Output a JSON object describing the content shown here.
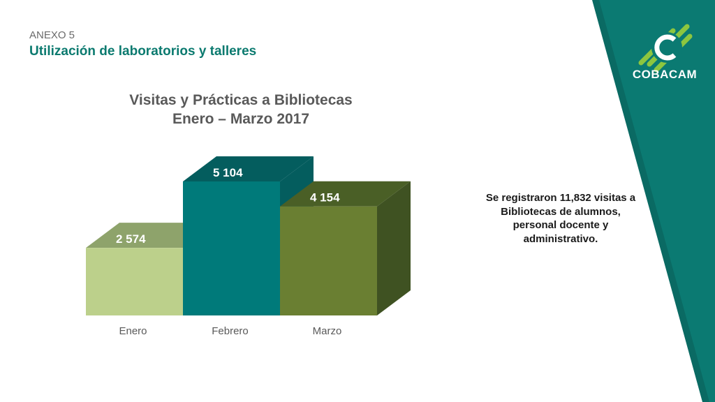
{
  "header": {
    "annex": "ANEXO 5",
    "subtitle": "Utilización de laboratorios y talleres"
  },
  "brand": {
    "name": "COBACAM",
    "color": "#0b7a72",
    "accent": "#8dc63f"
  },
  "note": "Se registraron 11,832 visitas a Bibliotecas de alumnos, personal docente y administrativo.",
  "chart_data": {
    "type": "bar",
    "style": "3d",
    "title_line1": "Visitas y Prácticas a Bibliotecas",
    "title_line2": "Enero – Marzo 2017",
    "categories": [
      "Enero",
      "Febrero",
      "Marzo"
    ],
    "values": [
      2574,
      5104,
      4154
    ],
    "value_labels": [
      "2 574",
      "5 104",
      "4 154"
    ],
    "colors": [
      {
        "front": "#bcd08b",
        "top": "#8ea36b",
        "side": "#8ea36b"
      },
      {
        "front": "#007a7a",
        "top": "#045d5e",
        "side": "#045d5e"
      },
      {
        "front": "#6a7f32",
        "top": "#4a5f26",
        "side": "#3f5222"
      }
    ],
    "xlabel": "",
    "ylabel": "",
    "ylim": [
      0,
      5104
    ],
    "grid": false,
    "legend": "none"
  }
}
